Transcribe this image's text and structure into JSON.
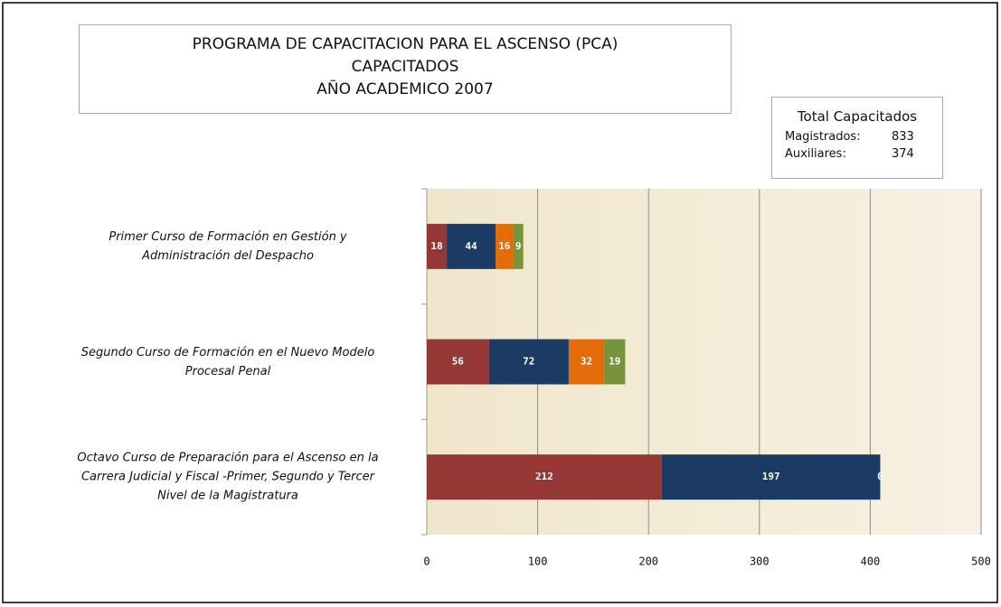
{
  "chart_data": {
    "type": "stacked-barh",
    "title": [
      "PROGRAMA DE CAPACITACION PARA EL ASCENSO (PCA)",
      "CAPACITADOS",
      "AÑO ACADEMICO 2007"
    ],
    "categories": [
      "Primer Curso de Formación en Gestión y\nAdministración del Despacho",
      "Segundo Curso de Formación en el Nuevo Modelo\nProcesal Penal",
      "Octavo Curso de Preparación para el Ascenso en la\nCarrera Judicial y Fiscal -Primer, Segundo y Tercer\nNivel de la Magistratura"
    ],
    "series": [
      {
        "color": "#953735",
        "values": [
          18,
          56,
          212
        ]
      },
      {
        "color": "#1b3a64",
        "values": [
          44,
          72,
          197
        ]
      },
      {
        "color": "#e46c0a",
        "values": [
          16,
          32,
          0
        ]
      },
      {
        "color": "#77933c",
        "values": [
          9,
          19,
          null
        ]
      }
    ],
    "xlim": [
      0,
      500
    ],
    "xticks": [
      0,
      100,
      200,
      300,
      400,
      500
    ],
    "grid": true,
    "totals_box": {
      "title": "Total Capacitados",
      "rows": [
        {
          "label": "Magistrados:",
          "value": 833
        },
        {
          "label": "Auxiliares:",
          "value": 374
        }
      ]
    }
  }
}
